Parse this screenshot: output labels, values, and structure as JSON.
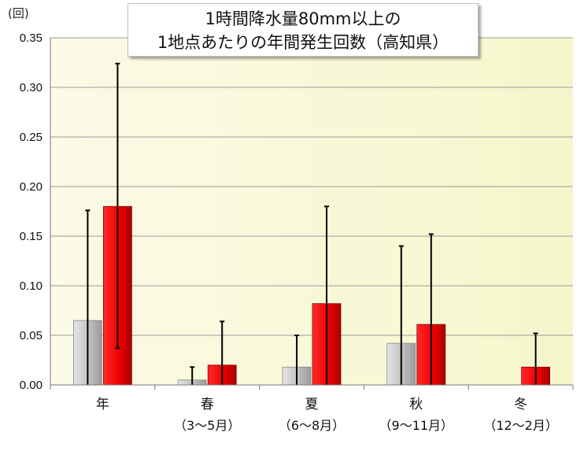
{
  "chart_data": {
    "type": "bar",
    "title_lines": [
      "1時間降水量80mm以上の",
      "1地点あたりの年間発生回数（高知県）"
    ],
    "unit_label": "(回)",
    "ylim": [
      0,
      0.35
    ],
    "yticks": [
      "0.00",
      "0.05",
      "0.10",
      "0.15",
      "0.20",
      "0.25",
      "0.30",
      "0.35"
    ],
    "categories": [
      {
        "line1": "年",
        "line2": ""
      },
      {
        "line1": "春",
        "line2": "（3～5月）"
      },
      {
        "line1": "夏",
        "line2": "（6～8月）"
      },
      {
        "line1": "秋",
        "line2": "（9～11月）"
      },
      {
        "line1": "冬",
        "line2": "（12～2月）"
      }
    ],
    "series": [
      {
        "color": "#c8c8c8",
        "values": [
          0.065,
          0.005,
          0.018,
          0.042,
          0.0
        ],
        "error_low": [
          0.0,
          0.0,
          0.0,
          0.0,
          null
        ],
        "error_high": [
          0.176,
          0.018,
          0.05,
          0.14,
          null
        ]
      },
      {
        "color": "#ee0000",
        "values": [
          0.18,
          0.02,
          0.082,
          0.061,
          0.018
        ],
        "error_low": [
          0.037,
          0.0,
          0.0,
          0.0,
          0.0
        ],
        "error_high": [
          0.324,
          0.064,
          0.18,
          0.152,
          0.052
        ]
      }
    ],
    "grid": true,
    "legend": "none"
  }
}
